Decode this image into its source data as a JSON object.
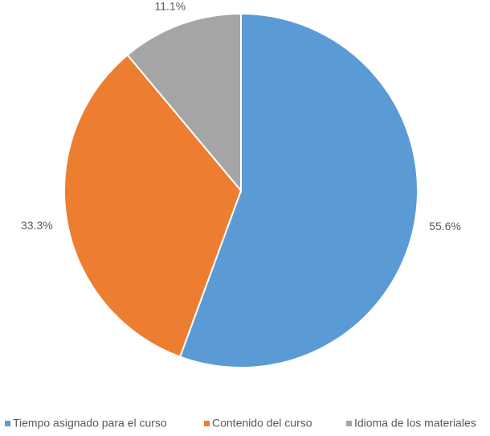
{
  "chart_data": {
    "type": "pie",
    "categories": [
      "Tiempo asignado para el curso",
      "Contenido del curso",
      "Idioma de los materiales"
    ],
    "values": [
      55.6,
      33.3,
      11.1
    ],
    "value_labels": [
      "55.6%",
      "33.3%",
      "11.1%"
    ],
    "colors": [
      "#5b9bd5",
      "#ed7d31",
      "#a5a5a5"
    ],
    "legend": "bottom"
  }
}
